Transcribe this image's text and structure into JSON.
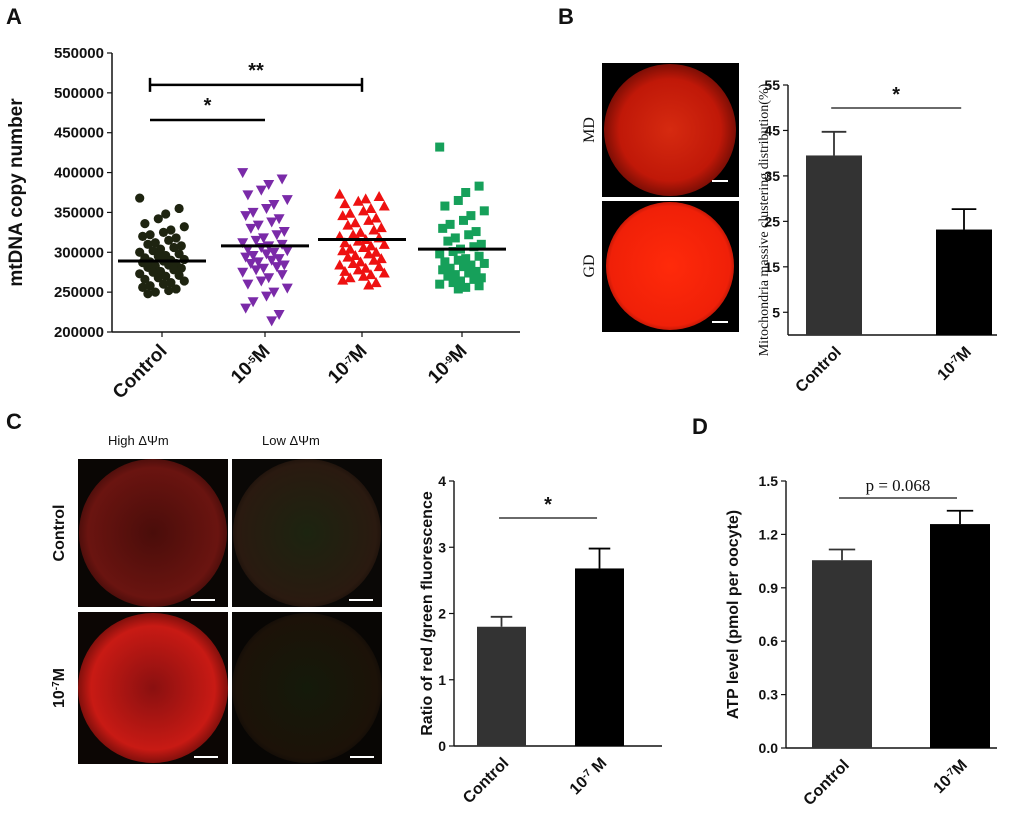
{
  "panels": {
    "a": "A",
    "b": "B",
    "c": "C",
    "d": "D"
  },
  "chart_data": [
    {
      "panel": "A",
      "type": "scatter",
      "ylabel": "mtDNA copy number",
      "categories": [
        "Control",
        "10-5M",
        "10-7M",
        "10-9M"
      ],
      "category_display": [
        {
          "base": "Control",
          "sup": "",
          "tail": ""
        },
        {
          "base": "10",
          "sup": "-5",
          "tail": "M"
        },
        {
          "base": "10",
          "sup": "-7",
          "tail": "M"
        },
        {
          "base": "10",
          "sup": "-9",
          "tail": "M"
        }
      ],
      "yticks": [
        200000,
        250000,
        300000,
        350000,
        400000,
        450000,
        500000,
        550000
      ],
      "ylim": [
        200000,
        550000
      ],
      "series": [
        {
          "color": "#1e2410",
          "marker": "circle",
          "mean": 289000,
          "values": [
            368000,
            355000,
            348000,
            342000,
            336000,
            332000,
            328000,
            325000,
            322000,
            320000,
            318000,
            315000,
            312000,
            310000,
            308000,
            306000,
            304000,
            302000,
            300000,
            298000,
            296000,
            295000,
            293000,
            291000,
            290000,
            289000,
            288000,
            287000,
            286000,
            284000,
            283000,
            281000,
            280000,
            278000,
            276000,
            275000,
            273000,
            271000,
            270000,
            268000,
            266000,
            264000,
            262000,
            260000,
            258000,
            256000,
            254000,
            252000,
            250000,
            248000
          ]
        },
        {
          "color": "#7a2aa8",
          "marker": "triangle-down",
          "mean": 308000,
          "values": [
            400000,
            392000,
            385000,
            378000,
            372000,
            366000,
            360000,
            355000,
            350000,
            346000,
            342000,
            338000,
            334000,
            330000,
            326000,
            322000,
            318000,
            315000,
            312000,
            310000,
            308000,
            306000,
            304000,
            302000,
            300000,
            298000,
            296000,
            294000,
            292000,
            290000,
            288000,
            286000,
            284000,
            282000,
            280000,
            278000,
            275000,
            272000,
            268000,
            264000,
            260000,
            255000,
            250000,
            245000,
            238000,
            230000,
            222000,
            214000
          ]
        },
        {
          "color": "#ee1111",
          "marker": "triangle-up",
          "mean": 316000,
          "values": [
            373000,
            370000,
            367000,
            364000,
            361000,
            358000,
            355000,
            352000,
            349000,
            346000,
            343000,
            340000,
            337000,
            334000,
            331000,
            328000,
            325000,
            322000,
            320000,
            318000,
            316000,
            314000,
            312000,
            310000,
            308000,
            306000,
            304000,
            302000,
            300000,
            298000,
            296000,
            294000,
            292000,
            290000,
            288000,
            286000,
            284000,
            282000,
            280000,
            278000,
            276000,
            274000,
            272000,
            270000,
            268000,
            265000,
            262000,
            259000
          ]
        },
        {
          "color": "#16a05a",
          "marker": "square",
          "mean": 304000,
          "values": [
            432000,
            383000,
            375000,
            365000,
            358000,
            352000,
            346000,
            340000,
            335000,
            330000,
            326000,
            322000,
            318000,
            314000,
            310000,
            307000,
            304000,
            301000,
            298000,
            295000,
            292000,
            290000,
            288000,
            286000,
            284000,
            282000,
            280000,
            278000,
            276000,
            274000,
            272000,
            270000,
            268000,
            266000,
            264000,
            262000,
            260000,
            258000,
            256000,
            254000
          ]
        }
      ],
      "annotations": [
        {
          "text": "*",
          "from": 0,
          "to": 1,
          "y": 466000
        },
        {
          "text": "**",
          "from": 0,
          "to": 2,
          "y": 510000
        }
      ]
    },
    {
      "panel": "B",
      "type": "bar",
      "ylabel": "Mitochondria massive clustering distribution(%)",
      "categories": [
        "Control",
        "10-7M"
      ],
      "category_display": [
        {
          "base": "Control",
          "sup": "",
          "tail": ""
        },
        {
          "base": "10",
          "sup": "-7",
          "tail": "M"
        }
      ],
      "values": [
        39.5,
        23.2
      ],
      "errors": [
        5.2,
        4.5
      ],
      "colors": [
        "#333333",
        "#000000"
      ],
      "yticks": [
        5,
        15,
        25,
        35,
        45,
        55
      ],
      "ylim": [
        0,
        55
      ],
      "annotation": "*"
    },
    {
      "panel": "C",
      "type": "bar",
      "ylabel": "Ratio of red /green fluorescence",
      "categories": [
        "Control",
        "10-7 M"
      ],
      "category_display": [
        {
          "base": "Control",
          "sup": "",
          "tail": ""
        },
        {
          "base": "10",
          "sup": "-7",
          "tail": " M"
        }
      ],
      "values": [
        1.8,
        2.68
      ],
      "errors": [
        0.15,
        0.3
      ],
      "colors": [
        "#333333",
        "#000000"
      ],
      "yticks": [
        0,
        1,
        2,
        3,
        4
      ],
      "ylim": [
        0,
        4
      ],
      "annotation": "*"
    },
    {
      "panel": "D",
      "type": "bar",
      "ylabel": "ATP level (pmol per oocyte)",
      "categories": [
        "Control",
        "10-7M"
      ],
      "category_display": [
        {
          "base": "Control",
          "sup": "",
          "tail": ""
        },
        {
          "base": "10",
          "sup": "-7",
          "tail": "M"
        }
      ],
      "values": [
        1.055,
        1.258
      ],
      "errors": [
        0.06,
        0.075
      ],
      "colors": [
        "#333333",
        "#000000"
      ],
      "yticks": [
        0.0,
        0.3,
        0.6,
        0.9,
        1.2,
        1.5
      ],
      "ylim": [
        0,
        1.5
      ],
      "annotation": "p = 0.068"
    }
  ],
  "images": {
    "b_rows": [
      "MD",
      "GD"
    ],
    "c_cols": [
      "High  ΔΨm",
      "Low ΔΨm"
    ],
    "c_rows": [
      {
        "base": "Control",
        "sup": "",
        "tail": ""
      },
      {
        "base": "10",
        "sup": "-7",
        "tail": "M"
      }
    ]
  }
}
